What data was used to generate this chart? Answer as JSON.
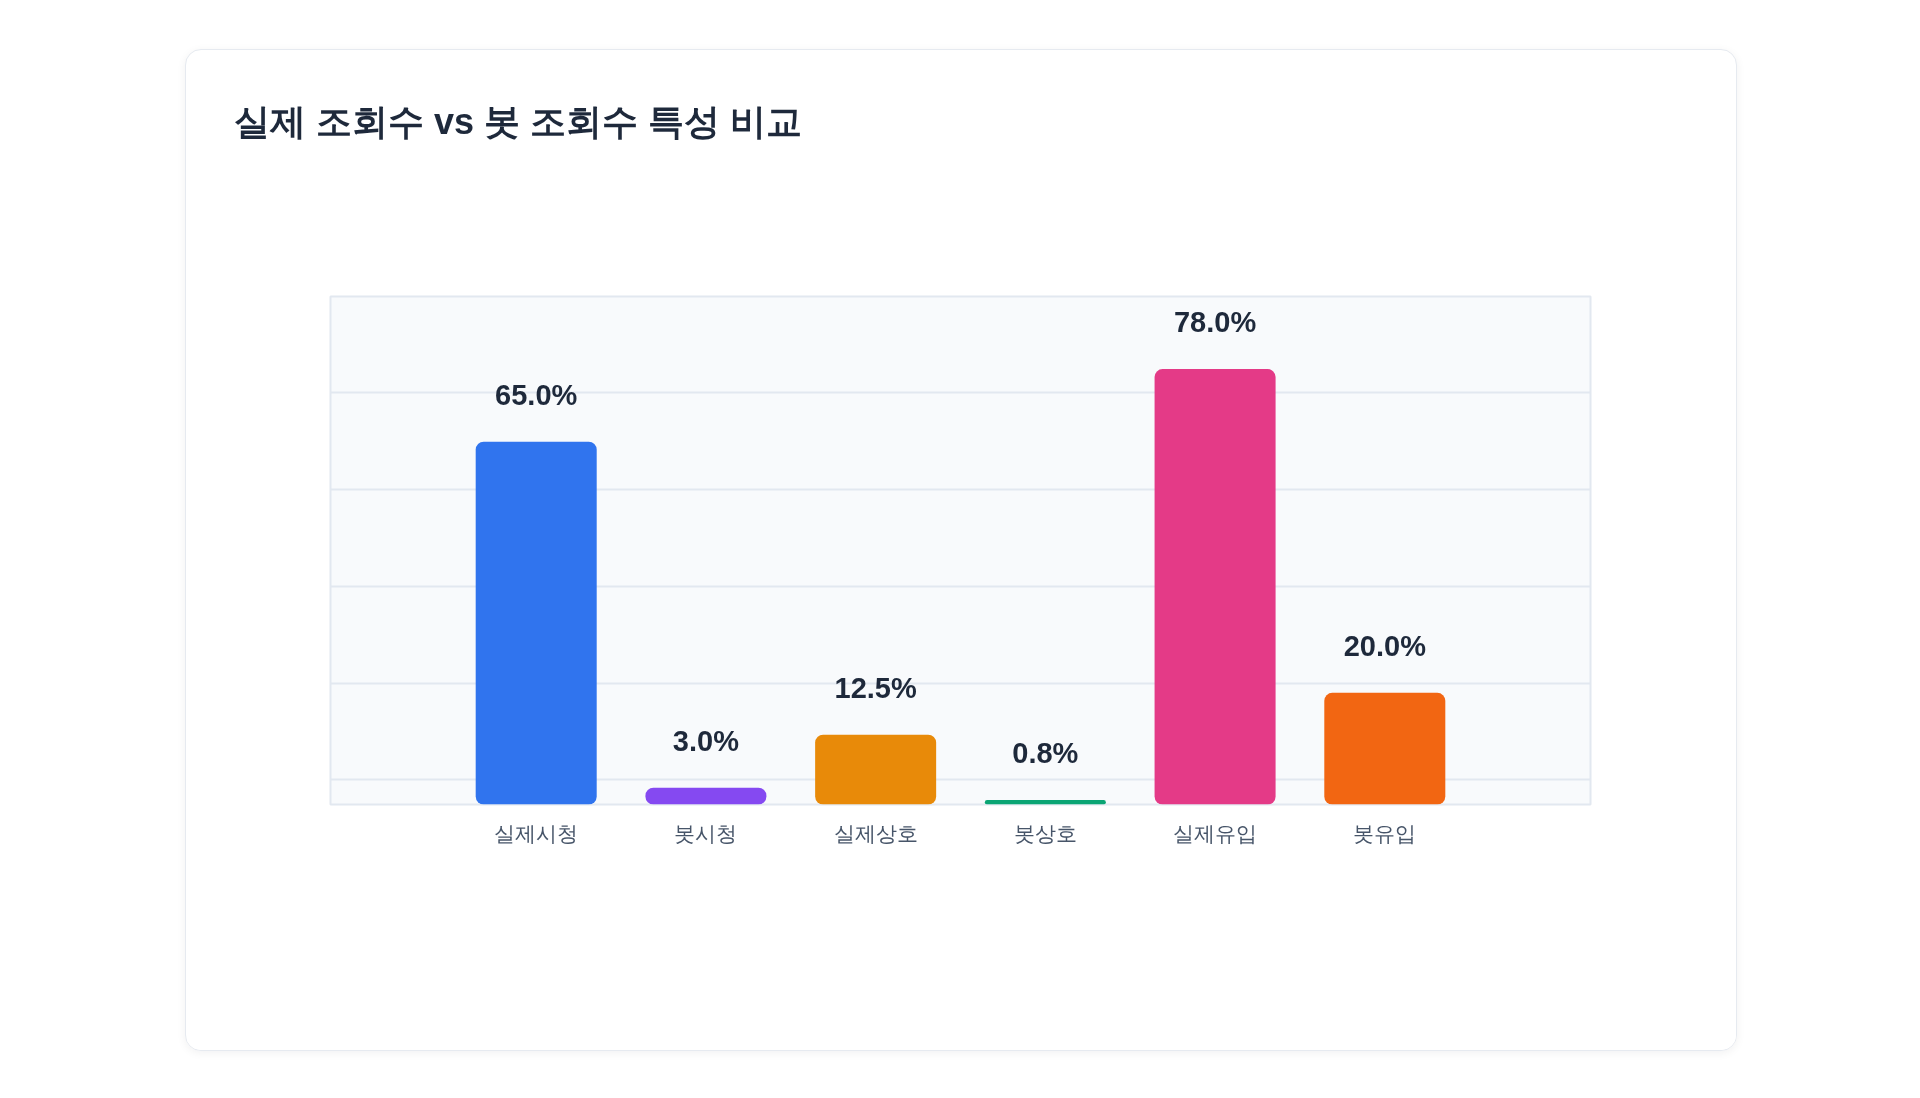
{
  "chart_data": {
    "type": "bar",
    "title": "실제 조회수 vs 봇 조회수 특성 비교",
    "categories": [
      "실제시청",
      "봇시청",
      "실제상호",
      "봇상호",
      "실제유입",
      "봇유입"
    ],
    "values": [
      65.0,
      3.0,
      12.5,
      0.8,
      78.0,
      20.0
    ],
    "colors": [
      "#3074ee",
      "#8549f1",
      "#e88a09",
      "#0ba574",
      "#e43a87",
      "#f26612"
    ],
    "value_labels": [
      "65.0%",
      "3.0%",
      "12.5%",
      "0.8%",
      "78.0%",
      "20.0%"
    ],
    "ylim": [
      0,
      91
    ],
    "yticks": [
      {
        "value": 4.4,
        "label": null
      },
      {
        "value": 21.7,
        "label": null
      },
      {
        "value": 39.1,
        "label": null
      },
      {
        "value": 56.4,
        "label": null
      },
      {
        "value": 73.8,
        "label": null
      }
    ],
    "grid": "y",
    "tick_labels": "x"
  }
}
